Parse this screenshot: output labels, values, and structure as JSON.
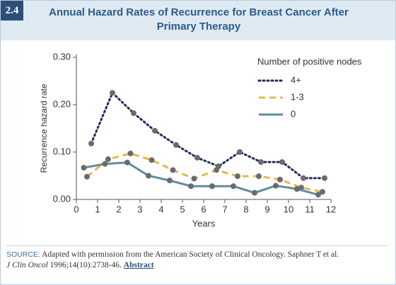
{
  "figure_label": "2.4",
  "chart_data": {
    "type": "line",
    "title": "Annual Hazard Rates of Recurrence for Breast Cancer After Primary Therapy",
    "xlabel": "Years",
    "ylabel": "Recurrence hazard rate",
    "xlim": [
      0,
      12
    ],
    "xticks": [
      0,
      1,
      2,
      3,
      4,
      5,
      6,
      7,
      8,
      9,
      10,
      11,
      12
    ],
    "ylim": [
      0,
      0.3
    ],
    "yticks": [
      {
        "value": 0,
        "label": "0.00"
      },
      {
        "value": 0.1,
        "label": "0.10"
      },
      {
        "value": 0.2,
        "label": "0.20"
      },
      {
        "value": 0.3,
        "label": "0.30"
      }
    ],
    "legend_title": "Number of positive nodes",
    "legend_position": "upper right",
    "marker_color": "#6b6b6b",
    "series": [
      {
        "name": "4+",
        "color": "#1f2b5e",
        "dash": "dotted",
        "x": [
          0.7,
          1.7,
          2.7,
          3.7,
          4.7,
          5.7,
          6.7,
          7.7,
          8.7,
          9.7,
          10.7,
          11.7
        ],
        "values": [
          0.118,
          0.225,
          0.182,
          0.145,
          0.115,
          0.088,
          0.07,
          0.1,
          0.079,
          0.079,
          0.045,
          0.045
        ]
      },
      {
        "name": "1-3",
        "color": "#e7b84a",
        "dash": "dashed",
        "x": [
          0.5,
          1.5,
          2.55,
          3.55,
          4.55,
          5.55,
          6.6,
          7.6,
          8.6,
          9.6,
          10.6,
          11.6
        ],
        "values": [
          0.048,
          0.085,
          0.097,
          0.083,
          0.062,
          0.044,
          0.062,
          0.049,
          0.049,
          0.042,
          0.025,
          0.016
        ]
      },
      {
        "name": "0",
        "color": "#5f8c9e",
        "dash": "solid",
        "x": [
          0.35,
          1.35,
          2.4,
          3.4,
          4.4,
          5.4,
          6.4,
          7.4,
          8.4,
          9.4,
          10.4,
          11.4
        ],
        "values": [
          0.067,
          0.075,
          0.078,
          0.05,
          0.04,
          0.028,
          0.028,
          0.028,
          0.014,
          0.029,
          0.022,
          0.01
        ]
      }
    ]
  },
  "source": {
    "label": "SOURCE:",
    "text": "Adapted with permission from the American Society of Clinical Oncology. Saphner T et al.",
    "journal": "J Clin Oncol",
    "citation": "1996;14(10):2738-46.",
    "link": "Abstract"
  }
}
